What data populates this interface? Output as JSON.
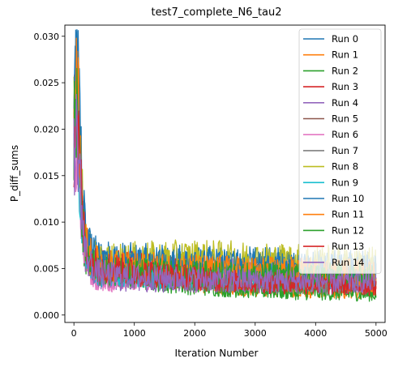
{
  "chart_data": {
    "type": "line",
    "title": "test7_complete_N6_tau2",
    "xlabel": "Iteration Number",
    "ylabel": "P_diff_sums",
    "xlim": [
      -150,
      5150
    ],
    "ylim": [
      -0.0008,
      0.0312
    ],
    "xticks": [
      0,
      1000,
      2000,
      3000,
      4000,
      5000
    ],
    "xtick_labels": [
      "0",
      "1000",
      "2000",
      "3000",
      "4000",
      "5000"
    ],
    "yticks": [
      0.0,
      0.005,
      0.01,
      0.015,
      0.02,
      0.025,
      0.03
    ],
    "ytick_labels": [
      "0.000",
      "0.005",
      "0.010",
      "0.015",
      "0.020",
      "0.025",
      "0.030"
    ],
    "grid": false,
    "legend_position": "top-right",
    "series": [
      {
        "name": "Run 0",
        "color": "#1f77b4",
        "x": [
          0,
          50,
          100,
          150,
          200,
          300,
          400,
          600,
          800,
          1000,
          1500,
          2000,
          2500,
          3000,
          3500,
          4000,
          4500,
          5000
        ],
        "y": [
          0.018,
          0.028,
          0.021,
          0.012,
          0.008,
          0.0068,
          0.0062,
          0.006,
          0.0059,
          0.0058,
          0.0057,
          0.0056,
          0.0055,
          0.0055,
          0.0054,
          0.0053,
          0.0053,
          0.0052
        ]
      },
      {
        "name": "Run 1",
        "color": "#ff7f0e",
        "x": [
          0,
          50,
          100,
          150,
          200,
          300,
          400,
          600,
          800,
          1000,
          1500,
          2000,
          2500,
          3000,
          3500,
          4000,
          4500,
          5000
        ],
        "y": [
          0.029,
          0.024,
          0.016,
          0.01,
          0.007,
          0.0055,
          0.005,
          0.0047,
          0.0045,
          0.0043,
          0.004,
          0.0036,
          0.0033,
          0.003,
          0.0028,
          0.0027,
          0.0026,
          0.0026
        ]
      },
      {
        "name": "Run 2",
        "color": "#2ca02c",
        "x": [
          0,
          50,
          100,
          150,
          200,
          300,
          400,
          600,
          800,
          1000,
          1500,
          2000,
          2500,
          3000,
          3500,
          4000,
          4500,
          5000
        ],
        "y": [
          0.021,
          0.022,
          0.015,
          0.009,
          0.0065,
          0.0052,
          0.0047,
          0.0044,
          0.0042,
          0.004,
          0.0036,
          0.0032,
          0.0029,
          0.0027,
          0.0025,
          0.0024,
          0.0023,
          0.0022
        ]
      },
      {
        "name": "Run 3",
        "color": "#d62728",
        "x": [
          0,
          50,
          100,
          150,
          200,
          300,
          400,
          600,
          800,
          1000,
          1500,
          2000,
          2500,
          3000,
          3500,
          4000,
          4500,
          5000
        ],
        "y": [
          0.02,
          0.023,
          0.017,
          0.01,
          0.0072,
          0.006,
          0.0056,
          0.0054,
          0.0052,
          0.0051,
          0.0049,
          0.0047,
          0.0045,
          0.0043,
          0.0042,
          0.0041,
          0.004,
          0.0039
        ]
      },
      {
        "name": "Run 4",
        "color": "#9467bd",
        "x": [
          0,
          50,
          100,
          150,
          200,
          300,
          400,
          600,
          800,
          1000,
          1500,
          2000,
          2500,
          3000,
          3500,
          4000,
          4500,
          5000
        ],
        "y": [
          0.017,
          0.019,
          0.014,
          0.009,
          0.0063,
          0.0048,
          0.0042,
          0.004,
          0.0039,
          0.0038,
          0.0037,
          0.0036,
          0.0036,
          0.0035,
          0.0035,
          0.0035,
          0.0034,
          0.0034
        ]
      },
      {
        "name": "Run 5",
        "color": "#8c564b",
        "x": [
          0,
          50,
          100,
          150,
          200,
          300,
          400,
          600,
          800,
          1000,
          1500,
          2000,
          2500,
          3000,
          3500,
          4000,
          4500,
          5000
        ],
        "y": [
          0.019,
          0.021,
          0.016,
          0.0095,
          0.0068,
          0.0055,
          0.005,
          0.0048,
          0.0047,
          0.0046,
          0.0045,
          0.0044,
          0.0043,
          0.0043,
          0.0042,
          0.0042,
          0.0041,
          0.0041
        ]
      },
      {
        "name": "Run 6",
        "color": "#e377c2",
        "x": [
          0,
          50,
          100,
          150,
          200,
          300,
          400,
          600,
          800,
          1000,
          1500,
          2000,
          2500,
          3000,
          3500,
          4000,
          4500,
          5000
        ],
        "y": [
          0.016,
          0.018,
          0.013,
          0.0085,
          0.006,
          0.0045,
          0.0039,
          0.0037,
          0.0037,
          0.0038,
          0.0042,
          0.0046,
          0.0047,
          0.0046,
          0.0045,
          0.0044,
          0.0043,
          0.0043
        ]
      },
      {
        "name": "Run 7",
        "color": "#7f7f7f",
        "x": [
          0,
          50,
          100,
          150,
          200,
          300,
          400,
          600,
          800,
          1000,
          1500,
          2000,
          2500,
          3000,
          3500,
          4000,
          4500,
          5000
        ],
        "y": [
          0.02,
          0.022,
          0.016,
          0.0095,
          0.0066,
          0.0052,
          0.0046,
          0.0044,
          0.0043,
          0.0042,
          0.004,
          0.0038,
          0.0037,
          0.0036,
          0.0035,
          0.0034,
          0.0034,
          0.0033
        ]
      },
      {
        "name": "Run 8",
        "color": "#bcbd22",
        "x": [
          0,
          50,
          100,
          150,
          200,
          300,
          400,
          600,
          800,
          1000,
          1500,
          2000,
          2500,
          3000,
          3500,
          4000,
          4500,
          5000
        ],
        "y": [
          0.024,
          0.025,
          0.018,
          0.011,
          0.0075,
          0.0062,
          0.0058,
          0.0057,
          0.0058,
          0.0059,
          0.006,
          0.0061,
          0.006,
          0.0059,
          0.0058,
          0.0057,
          0.0056,
          0.0055
        ]
      },
      {
        "name": "Run 9",
        "color": "#17becf",
        "x": [
          0,
          50,
          100,
          150,
          200,
          300,
          400,
          600,
          800,
          1000,
          1500,
          2000,
          2500,
          3000,
          3500,
          4000,
          4500,
          5000
        ],
        "y": [
          0.015,
          0.02,
          0.014,
          0.0085,
          0.0062,
          0.005,
          0.0046,
          0.0045,
          0.0044,
          0.0044,
          0.0043,
          0.0043,
          0.0042,
          0.0042,
          0.0042,
          0.0041,
          0.0041,
          0.0041
        ]
      },
      {
        "name": "Run 10",
        "color": "#1f77b4",
        "x": [
          0,
          50,
          100,
          150,
          200,
          300,
          400,
          600,
          800,
          1000,
          1500,
          2000,
          2500,
          3000,
          3500,
          4000,
          4500,
          5000
        ],
        "y": [
          0.022,
          0.027,
          0.02,
          0.0115,
          0.0078,
          0.0064,
          0.0059,
          0.0057,
          0.0056,
          0.0055,
          0.0054,
          0.0053,
          0.0052,
          0.0051,
          0.005,
          0.0049,
          0.0049,
          0.0048
        ]
      },
      {
        "name": "Run 11",
        "color": "#ff7f0e",
        "x": [
          0,
          50,
          100,
          150,
          200,
          300,
          400,
          600,
          800,
          1000,
          1500,
          2000,
          2500,
          3000,
          3500,
          4000,
          4500,
          5000
        ],
        "y": [
          0.023,
          0.027,
          0.019,
          0.011,
          0.0074,
          0.006,
          0.0055,
          0.0053,
          0.0052,
          0.0051,
          0.005,
          0.0049,
          0.0048,
          0.0047,
          0.0047,
          0.0046,
          0.0046,
          0.0045
        ]
      },
      {
        "name": "Run 12",
        "color": "#2ca02c",
        "x": [
          0,
          50,
          100,
          150,
          200,
          300,
          400,
          600,
          800,
          1000,
          1500,
          2000,
          2500,
          3000,
          3500,
          4000,
          4500,
          5000
        ],
        "y": [
          0.02,
          0.021,
          0.015,
          0.009,
          0.0066,
          0.0054,
          0.005,
          0.0048,
          0.0047,
          0.0046,
          0.0045,
          0.0044,
          0.0043,
          0.0043,
          0.0042,
          0.0042,
          0.0042,
          0.0041
        ]
      },
      {
        "name": "Run 13",
        "color": "#d62728",
        "x": [
          0,
          50,
          100,
          150,
          200,
          300,
          400,
          600,
          800,
          1000,
          1500,
          2000,
          2500,
          3000,
          3500,
          4000,
          4500,
          5000
        ],
        "y": [
          0.018,
          0.022,
          0.016,
          0.0098,
          0.007,
          0.0058,
          0.0053,
          0.0051,
          0.0049,
          0.0047,
          0.0043,
          0.004,
          0.0037,
          0.0035,
          0.0034,
          0.0033,
          0.0032,
          0.0031
        ]
      },
      {
        "name": "Run 14",
        "color": "#9467bd",
        "x": [
          0,
          50,
          100,
          150,
          200,
          300,
          400,
          600,
          800,
          1000,
          1500,
          2000,
          2500,
          3000,
          3500,
          4000,
          4500,
          5000
        ],
        "y": [
          0.017,
          0.02,
          0.015,
          0.009,
          0.0065,
          0.0051,
          0.0045,
          0.0043,
          0.0042,
          0.0041,
          0.004,
          0.0039,
          0.0038,
          0.0038,
          0.0037,
          0.0037,
          0.0036,
          0.0036
        ]
      }
    ]
  }
}
